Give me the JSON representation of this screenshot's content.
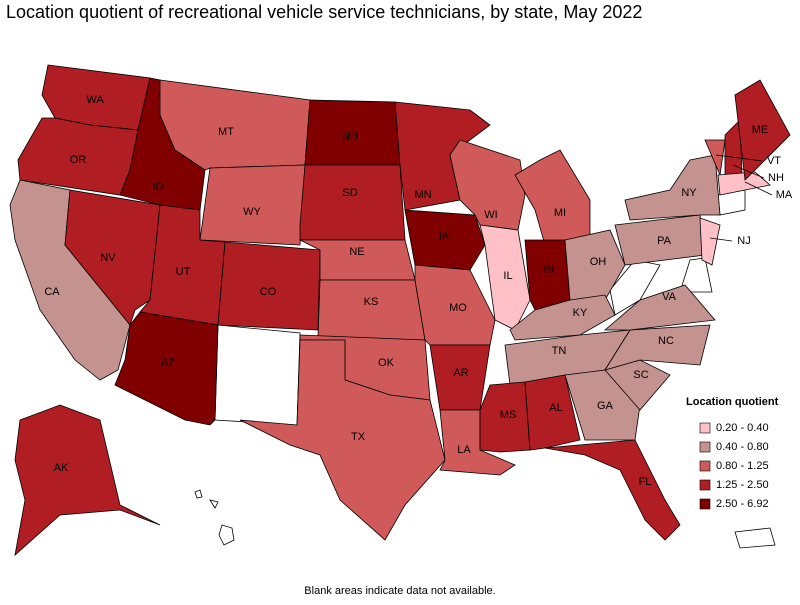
{
  "title": "Location quotient of recreational vehicle service technicians, by state, May 2022",
  "note": "Blank areas indicate data not available.",
  "legend": {
    "title": "Location quotient",
    "items": [
      {
        "label": "0.20 - 0.40",
        "color": "#ffc0c8"
      },
      {
        "label": "0.40 - 0.80",
        "color": "#c4928f"
      },
      {
        "label": "0.80 - 1.25",
        "color": "#d05a5a"
      },
      {
        "label": "1.25 - 2.50",
        "color": "#b01e24"
      },
      {
        "label": "2.50 - 6.92",
        "color": "#800000"
      }
    ]
  },
  "states": [
    {
      "label": "WA",
      "color": "#b01e24"
    },
    {
      "label": "OR",
      "color": "#b01e24"
    },
    {
      "label": "CA",
      "color": "#c4928f"
    },
    {
      "label": "NV",
      "color": "#b01e24"
    },
    {
      "label": "ID",
      "color": "#800000"
    },
    {
      "label": "MT",
      "color": "#d05a5a"
    },
    {
      "label": "WY",
      "color": "#d05a5a"
    },
    {
      "label": "UT",
      "color": "#b01e24"
    },
    {
      "label": "AZ",
      "color": "#800000"
    },
    {
      "label": "CO",
      "color": "#b01e24"
    },
    {
      "label": "ND",
      "color": "#800000"
    },
    {
      "label": "SD",
      "color": "#b01e24"
    },
    {
      "label": "NE",
      "color": "#d05a5a"
    },
    {
      "label": "KS",
      "color": "#d05a5a"
    },
    {
      "label": "OK",
      "color": "#d05a5a"
    },
    {
      "label": "TX",
      "color": "#d05a5a"
    },
    {
      "label": "MN",
      "color": "#b01e24"
    },
    {
      "label": "IA",
      "color": "#800000"
    },
    {
      "label": "MO",
      "color": "#d05a5a"
    },
    {
      "label": "AR",
      "color": "#b01e24"
    },
    {
      "label": "LA",
      "color": "#d05a5a"
    },
    {
      "label": "WI",
      "color": "#d05a5a"
    },
    {
      "label": "IL",
      "color": "#ffc0c8"
    },
    {
      "label": "MI",
      "color": "#d05a5a"
    },
    {
      "label": "IN",
      "color": "#800000"
    },
    {
      "label": "OH",
      "color": "#c4928f"
    },
    {
      "label": "KY",
      "color": "#c4928f"
    },
    {
      "label": "TN",
      "color": "#c4928f"
    },
    {
      "label": "MS",
      "color": "#b01e24"
    },
    {
      "label": "AL",
      "color": "#b01e24"
    },
    {
      "label": "GA",
      "color": "#c4928f"
    },
    {
      "label": "FL",
      "color": "#b01e24"
    },
    {
      "label": "SC",
      "color": "#c4928f"
    },
    {
      "label": "NC",
      "color": "#c4928f"
    },
    {
      "label": "VA",
      "color": "#c4928f"
    },
    {
      "label": "PA",
      "color": "#c4928f"
    },
    {
      "label": "NY",
      "color": "#c4928f"
    },
    {
      "label": "VT",
      "color": "#d05a5a"
    },
    {
      "label": "NH",
      "color": "#b01e24"
    },
    {
      "label": "MA",
      "color": "#ffc0c8"
    },
    {
      "label": "NJ",
      "color": "#ffc0c8"
    },
    {
      "label": "ME",
      "color": "#b01e24"
    },
    {
      "label": "AK",
      "color": "#b01e24"
    }
  ]
}
